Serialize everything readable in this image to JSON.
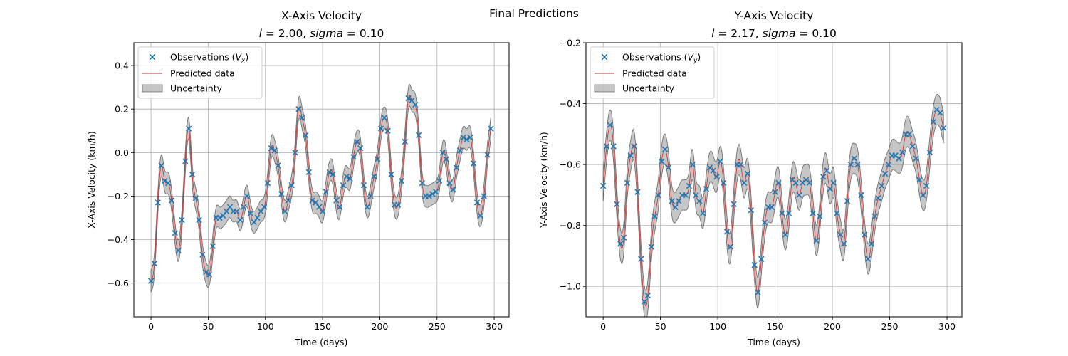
{
  "figure": {
    "suptitle": "Final Predictions"
  },
  "chart_data": [
    {
      "type": "line",
      "title": "X-Axis Velocity",
      "subtitle_l": "2.00",
      "subtitle_sigma": "0.10",
      "xlabel": "Time (days)",
      "ylabel": "X-Axis Velocity (km/h)",
      "xlim": [
        -15,
        313
      ],
      "ylim": [
        -0.755,
        0.505
      ],
      "xticks": [
        0,
        50,
        100,
        150,
        200,
        250,
        300
      ],
      "yticks": [
        -0.6,
        -0.4,
        -0.2,
        0.0,
        0.2,
        0.4
      ],
      "ytick_labels": [
        "−0.6",
        "−0.4",
        "−0.2",
        "0.0",
        "0.2",
        "0.4"
      ],
      "grid": true,
      "legend": {
        "position": "top-left",
        "observations_label": "Observations (",
        "observations_sym": "V",
        "observations_sub": "x",
        "predicted_label": "Predicted data",
        "uncertainty_label": "Uncertainty"
      },
      "uncertainty_halfwidth": 0.05,
      "colors": {
        "observations": "#1f77b4",
        "predicted": "#d62728",
        "uncertainty": "#808080"
      },
      "observations": {
        "x": [
          0,
          3,
          6,
          9,
          12,
          15,
          18,
          21,
          24,
          27,
          30,
          33,
          36,
          39,
          42,
          45,
          48,
          51,
          54,
          57,
          60,
          63,
          66,
          69,
          72,
          75,
          78,
          81,
          84,
          87,
          90,
          93,
          96,
          99,
          102,
          105,
          108,
          111,
          114,
          117,
          120,
          123,
          126,
          129,
          132,
          135,
          138,
          141,
          144,
          147,
          150,
          153,
          156,
          159,
          162,
          165,
          168,
          171,
          174,
          177,
          180,
          183,
          186,
          189,
          192,
          195,
          198,
          201,
          204,
          207,
          210,
          213,
          216,
          219,
          222,
          225,
          228,
          231,
          234,
          237,
          240,
          243,
          246,
          249,
          252,
          255,
          258,
          261,
          264,
          267,
          270,
          273,
          276,
          279,
          282,
          285,
          288,
          291,
          294,
          297
        ],
        "y": [
          -0.59,
          -0.51,
          -0.23,
          -0.06,
          -0.13,
          -0.14,
          -0.22,
          -0.37,
          -0.45,
          -0.31,
          -0.04,
          0.11,
          -0.1,
          -0.21,
          -0.31,
          -0.47,
          -0.55,
          -0.56,
          -0.43,
          -0.3,
          -0.3,
          -0.29,
          -0.27,
          -0.25,
          -0.27,
          -0.27,
          -0.31,
          -0.25,
          -0.2,
          -0.28,
          -0.32,
          -0.3,
          -0.27,
          -0.25,
          -0.14,
          0.02,
          0.01,
          -0.06,
          -0.19,
          -0.27,
          -0.22,
          -0.15,
          0.0,
          0.2,
          0.16,
          0.08,
          -0.09,
          -0.22,
          -0.23,
          -0.25,
          -0.27,
          -0.18,
          -0.09,
          -0.1,
          -0.22,
          -0.25,
          -0.15,
          -0.11,
          -0.12,
          -0.02,
          0.05,
          0.02,
          -0.15,
          -0.25,
          -0.2,
          -0.11,
          -0.03,
          0.11,
          0.16,
          0.1,
          -0.1,
          -0.24,
          -0.24,
          -0.13,
          0.05,
          0.25,
          0.24,
          0.22,
          0.08,
          -0.14,
          -0.2,
          -0.2,
          -0.19,
          -0.18,
          -0.13,
          -0.0,
          -0.03,
          -0.14,
          -0.17,
          -0.07,
          0.01,
          0.07,
          0.06,
          0.07,
          -0.05,
          -0.23,
          -0.29,
          -0.2,
          -0.01,
          0.11
        ]
      }
    },
    {
      "type": "line",
      "title": "Y-Axis Velocity",
      "subtitle_l": "2.17",
      "subtitle_sigma": "0.10",
      "xlabel": "Time (days)",
      "ylabel": "Y-Axis Velocity (km/h)",
      "xlim": [
        -15,
        313
      ],
      "ylim": [
        -1.1,
        -0.2
      ],
      "xticks": [
        0,
        50,
        100,
        150,
        200,
        250,
        300
      ],
      "yticks": [
        -1.0,
        -0.8,
        -0.6,
        -0.4,
        -0.2
      ],
      "ytick_labels": [
        "−1.0",
        "−0.8",
        "−0.6",
        "−0.4",
        "−0.2"
      ],
      "grid": true,
      "legend": {
        "position": "top-left",
        "observations_label": "Observations (",
        "observations_sym": "V",
        "observations_sub": "y",
        "predicted_label": "Predicted data",
        "uncertainty_label": "Uncertainty"
      },
      "uncertainty_halfwidth": 0.05,
      "colors": {
        "observations": "#1f77b4",
        "predicted": "#d62728",
        "uncertainty": "#808080"
      },
      "observations": {
        "x": [
          0,
          3,
          6,
          9,
          12,
          15,
          18,
          21,
          24,
          27,
          30,
          33,
          36,
          39,
          42,
          45,
          48,
          51,
          54,
          57,
          60,
          63,
          66,
          69,
          72,
          75,
          78,
          81,
          84,
          87,
          90,
          93,
          96,
          99,
          102,
          105,
          108,
          111,
          114,
          117,
          120,
          123,
          126,
          129,
          132,
          135,
          138,
          141,
          144,
          147,
          150,
          153,
          156,
          159,
          162,
          165,
          168,
          171,
          174,
          177,
          180,
          183,
          186,
          189,
          192,
          195,
          198,
          201,
          204,
          207,
          210,
          213,
          216,
          219,
          222,
          225,
          228,
          231,
          234,
          237,
          240,
          243,
          246,
          249,
          252,
          255,
          258,
          261,
          264,
          267,
          270,
          273,
          276,
          279,
          282,
          285,
          288,
          291,
          294,
          297
        ],
        "y": [
          -0.67,
          -0.54,
          -0.47,
          -0.54,
          -0.73,
          -0.86,
          -0.84,
          -0.66,
          -0.57,
          -0.54,
          -0.69,
          -0.91,
          -1.05,
          -1.03,
          -0.87,
          -0.77,
          -0.7,
          -0.59,
          -0.55,
          -0.61,
          -0.72,
          -0.74,
          -0.72,
          -0.7,
          -0.7,
          -0.67,
          -0.6,
          -0.7,
          -0.72,
          -0.76,
          -0.68,
          -0.61,
          -0.62,
          -0.64,
          -0.59,
          -0.66,
          -0.82,
          -0.87,
          -0.73,
          -0.6,
          -0.6,
          -0.66,
          -0.63,
          -0.75,
          -0.93,
          -1.02,
          -0.91,
          -0.79,
          -0.74,
          -0.74,
          -0.69,
          -0.66,
          -0.76,
          -0.83,
          -0.76,
          -0.65,
          -0.66,
          -0.7,
          -0.66,
          -0.65,
          -0.66,
          -0.76,
          -0.85,
          -0.77,
          -0.64,
          -0.62,
          -0.68,
          -0.66,
          -0.76,
          -0.83,
          -0.86,
          -0.72,
          -0.6,
          -0.58,
          -0.6,
          -0.7,
          -0.83,
          -0.91,
          -0.86,
          -0.77,
          -0.71,
          -0.67,
          -0.63,
          -0.6,
          -0.57,
          -0.57,
          -0.58,
          -0.56,
          -0.5,
          -0.5,
          -0.54,
          -0.58,
          -0.65,
          -0.7,
          -0.67,
          -0.56,
          -0.46,
          -0.42,
          -0.43,
          -0.48
        ]
      }
    }
  ]
}
